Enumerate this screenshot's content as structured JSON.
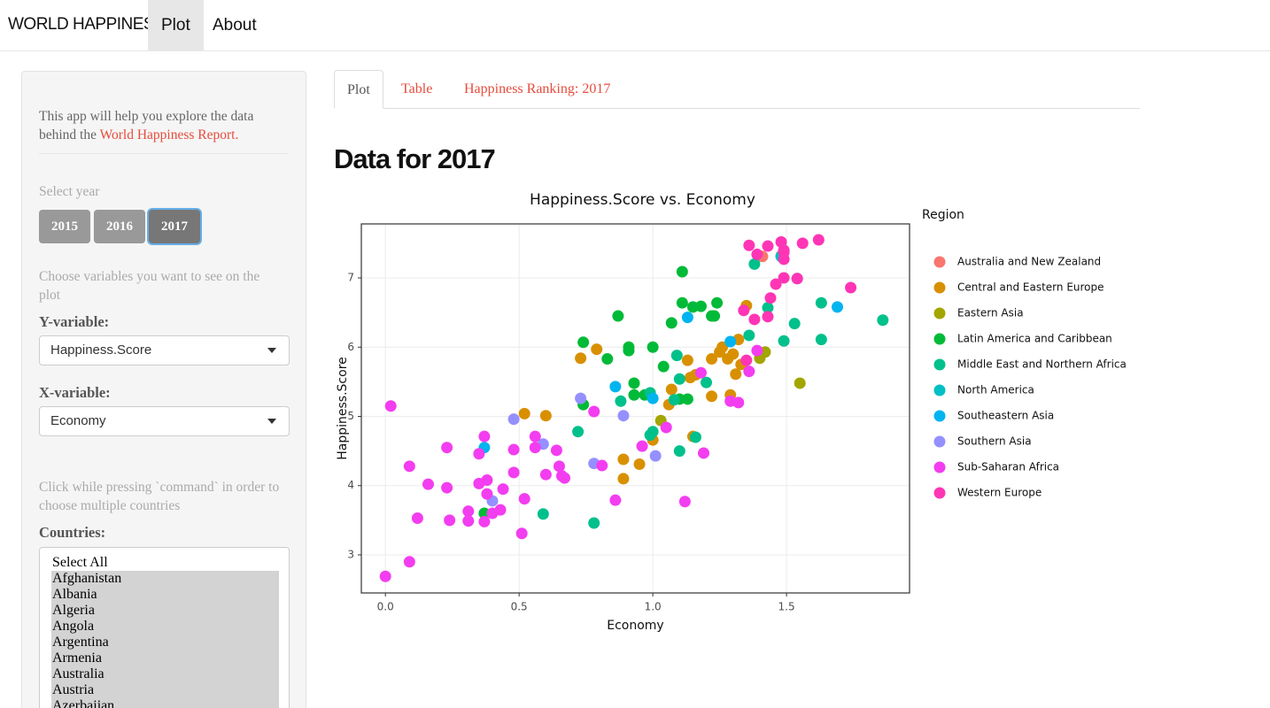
{
  "navbar": {
    "brand": "WORLD HAPPINESS",
    "items": [
      "Plot",
      "About"
    ]
  },
  "sidebar": {
    "intro": "This app will help you explore the data behind the",
    "intro_link": "World Happiness Report.",
    "year_label": "Select year",
    "years": [
      "2015",
      "2016",
      "2017"
    ],
    "vars_help": "Choose variables you want to see on the plot",
    "y_label": "Y-variable:",
    "y_value": "Happiness.Score",
    "x_label": "X-variable:",
    "x_value": "Economy",
    "countries_help": "Click while pressing `command` in order to choose multiple countries",
    "countries_label": "Countries:",
    "countries": [
      "Select All",
      "Afghanistan",
      "Albania",
      "Algeria",
      "Angola",
      "Argentina",
      "Armenia",
      "Australia",
      "Austria",
      "Azerbaijan"
    ]
  },
  "tabs": [
    "Plot",
    "Table",
    "Happiness Ranking: 2017"
  ],
  "heading": "Data for 2017",
  "chart_data": {
    "type": "scatter",
    "title": "Happiness.Score vs. Economy",
    "x_label": "Economy",
    "y_label": "Happiness.Score",
    "legend_title": "Region",
    "grid": true,
    "xlim": [
      -0.09,
      1.96
    ],
    "ylim": [
      2.45,
      7.78
    ],
    "xticks": [
      {
        "value": 0,
        "label": "0.0"
      },
      0.5,
      {
        "value": 1,
        "label": "1.0"
      },
      1.5
    ],
    "yticks": [
      3,
      4,
      5,
      6,
      7
    ],
    "series": [
      {
        "name": "Australia and New Zealand",
        "color": "#F8766D",
        "x": [
          1.41,
          1.48
        ],
        "values": [
          7.31,
          7.32
        ]
      },
      {
        "name": "Central and Eastern Europe",
        "color": "#D89000",
        "x": [
          0.73,
          0.79,
          0.52,
          0.6,
          0.89,
          0.89,
          0.95,
          1.0,
          1.06,
          1.07,
          1.13,
          1.14,
          1.16,
          1.15,
          1.22,
          1.22,
          1.25,
          1.26,
          1.28,
          1.29,
          1.3,
          1.31,
          1.32,
          1.33,
          1.35
        ],
        "values": [
          5.84,
          5.97,
          5.04,
          5.01,
          4.38,
          4.1,
          4.31,
          4.66,
          5.17,
          5.39,
          5.81,
          5.56,
          5.6,
          4.71,
          5.83,
          5.29,
          5.93,
          6.0,
          5.83,
          5.31,
          5.9,
          5.61,
          6.11,
          5.75,
          6.6
        ]
      },
      {
        "name": "Eastern Asia",
        "color": "#A3A500",
        "x": [
          1.4,
          1.42,
          1.55,
          1.03
        ],
        "values": [
          5.84,
          5.93,
          5.48,
          4.94
        ]
      },
      {
        "name": "Latin America and Caribbean",
        "color": "#00BA38",
        "x": [
          0.74,
          0.74,
          0.87,
          0.83,
          0.91,
          0.91,
          0.93,
          0.93,
          1.0,
          1.04,
          1.07,
          1.11,
          1.11,
          1.15,
          1.18,
          1.22,
          1.23,
          1.24,
          1.13,
          1.1,
          0.37,
          0.97
        ],
        "values": [
          5.17,
          6.07,
          6.45,
          5.83,
          6.0,
          5.95,
          5.48,
          5.31,
          6.0,
          5.72,
          6.35,
          7.09,
          6.64,
          6.58,
          6.59,
          6.45,
          6.45,
          6.64,
          5.25,
          5.25,
          3.6,
          5.31
        ]
      },
      {
        "name": "Middle East and Northern Africa",
        "color": "#00C08B",
        "x": [
          1.38,
          1.36,
          1.43,
          1.49,
          1.53,
          1.63,
          1.63,
          1.86,
          1.09,
          1.1,
          1.2,
          0.99,
          1.0,
          0.99,
          1.08,
          1.16,
          1.1,
          0.88,
          0.72,
          0.59,
          0.78
        ],
        "values": [
          7.2,
          6.17,
          6.57,
          6.09,
          6.34,
          6.64,
          6.11,
          6.39,
          5.88,
          5.54,
          5.49,
          5.34,
          4.78,
          4.73,
          5.24,
          4.7,
          4.5,
          5.22,
          4.78,
          3.59,
          3.46
        ]
      },
      {
        "name": "North America",
        "color": "#00BFC4",
        "x": [
          1.48,
          1.54
        ],
        "values": [
          7.31,
          6.99
        ]
      },
      {
        "name": "Southeastern Asia",
        "color": "#00B4F0",
        "x": [
          1.13,
          1.29,
          0.86,
          1.0,
          0.37,
          1.69
        ],
        "values": [
          6.43,
          6.08,
          5.43,
          5.26,
          4.55,
          6.58
        ]
      },
      {
        "name": "Southern Asia",
        "color": "#9590FF",
        "x": [
          0.48,
          0.59,
          0.73,
          0.78,
          0.89,
          1.01,
          0.4
        ],
        "values": [
          4.96,
          4.6,
          5.26,
          4.32,
          5.01,
          4.43,
          3.78
        ]
      },
      {
        "name": "Sub-Saharan Africa",
        "color": "#F33DF0",
        "x": [
          0.0,
          0.02,
          0.09,
          0.09,
          0.12,
          0.16,
          0.23,
          0.23,
          0.24,
          0.31,
          0.31,
          0.35,
          0.35,
          0.37,
          0.37,
          0.38,
          0.38,
          0.4,
          0.43,
          0.44,
          0.48,
          0.48,
          0.51,
          0.52,
          0.56,
          0.56,
          0.6,
          0.64,
          0.65,
          0.66,
          0.67,
          0.78,
          0.81,
          0.86,
          0.96,
          1.05,
          1.12,
          1.18,
          1.19,
          1.29,
          1.32,
          1.36,
          1.39
        ],
        "values": [
          2.69,
          5.15,
          4.28,
          2.9,
          3.53,
          4.02,
          4.55,
          3.97,
          3.5,
          3.63,
          3.49,
          4.46,
          4.03,
          4.71,
          3.48,
          4.08,
          3.88,
          3.6,
          3.65,
          3.95,
          4.52,
          4.19,
          3.31,
          3.81,
          4.71,
          4.55,
          4.16,
          4.51,
          4.28,
          4.14,
          4.11,
          5.07,
          4.29,
          3.79,
          4.57,
          4.84,
          3.77,
          5.63,
          4.47,
          5.22,
          5.2,
          5.65,
          5.95
        ]
      },
      {
        "name": "Western Europe",
        "color": "#FF35B5",
        "x": [
          1.36,
          1.39,
          1.43,
          1.48,
          1.49,
          1.49,
          1.56,
          1.62,
          1.49,
          1.49,
          1.46,
          1.44,
          1.54,
          1.74,
          1.34,
          1.38,
          1.43,
          1.35
        ],
        "values": [
          7.47,
          7.34,
          7.46,
          7.52,
          7.4,
          7.37,
          7.5,
          7.55,
          7.27,
          7.0,
          6.91,
          6.71,
          6.99,
          6.86,
          6.53,
          6.4,
          6.44,
          5.81
        ]
      }
    ]
  }
}
